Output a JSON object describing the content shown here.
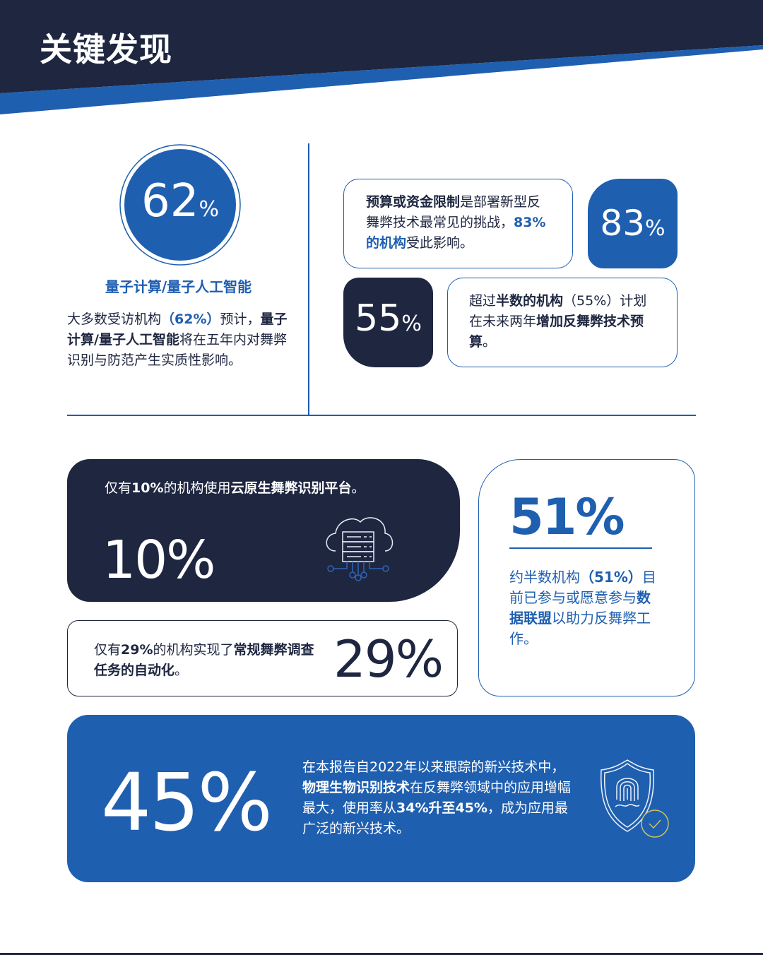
{
  "header": {
    "title": "关键发现"
  },
  "colors": {
    "navy": "#1e2640",
    "blue": "#1f5fb0",
    "gold": "#c9c06a"
  },
  "quantum": {
    "value": "62",
    "unit": "%",
    "label": "量子计算/量子人工智能",
    "text": [
      "大多数受访机构",
      "（62%）",
      "预计，",
      "量子计算/量子人工智能",
      "将在五年内对舞弊识别与防范产生实质性影响。"
    ]
  },
  "budget": {
    "text": [
      "预算或资金限制",
      "是部署新型反舞弊技术最常见的挑战，",
      "83%的机构",
      "受此影响。"
    ],
    "value": "83",
    "unit": "%"
  },
  "increase": {
    "value": "55",
    "unit": "%",
    "text": [
      "超过",
      "半数的机构",
      "（55%）计划在未来两年",
      "增加反舞弊技术预算",
      "。"
    ]
  },
  "cloud": {
    "text": [
      "仅有",
      "10%",
      "的机构使用",
      "云原生舞弊识别平台",
      "。"
    ],
    "value": "10%",
    "icon": "cloud-server-icon"
  },
  "consortium": {
    "value": "51%",
    "text": [
      "约半数机构",
      "（51%）",
      "目前已参与或愿意参与",
      "数据联盟",
      "以助力反舞弊工作。"
    ]
  },
  "automation": {
    "text": [
      "仅有",
      "29%",
      "的机构实现了",
      "常规舞弊调查任务的自动化",
      "。"
    ],
    "value": "29%"
  },
  "biometrics": {
    "value": "45%",
    "text": [
      "在本报告自2022年以来跟踪的新兴技术中，",
      "物理生物识别技术",
      "在反舞弊领域中的应用增幅最大，使用率从",
      "34%升至45%",
      "，成为应用最广泛的新兴技术。"
    ],
    "icon": "fingerprint-shield-icon"
  }
}
